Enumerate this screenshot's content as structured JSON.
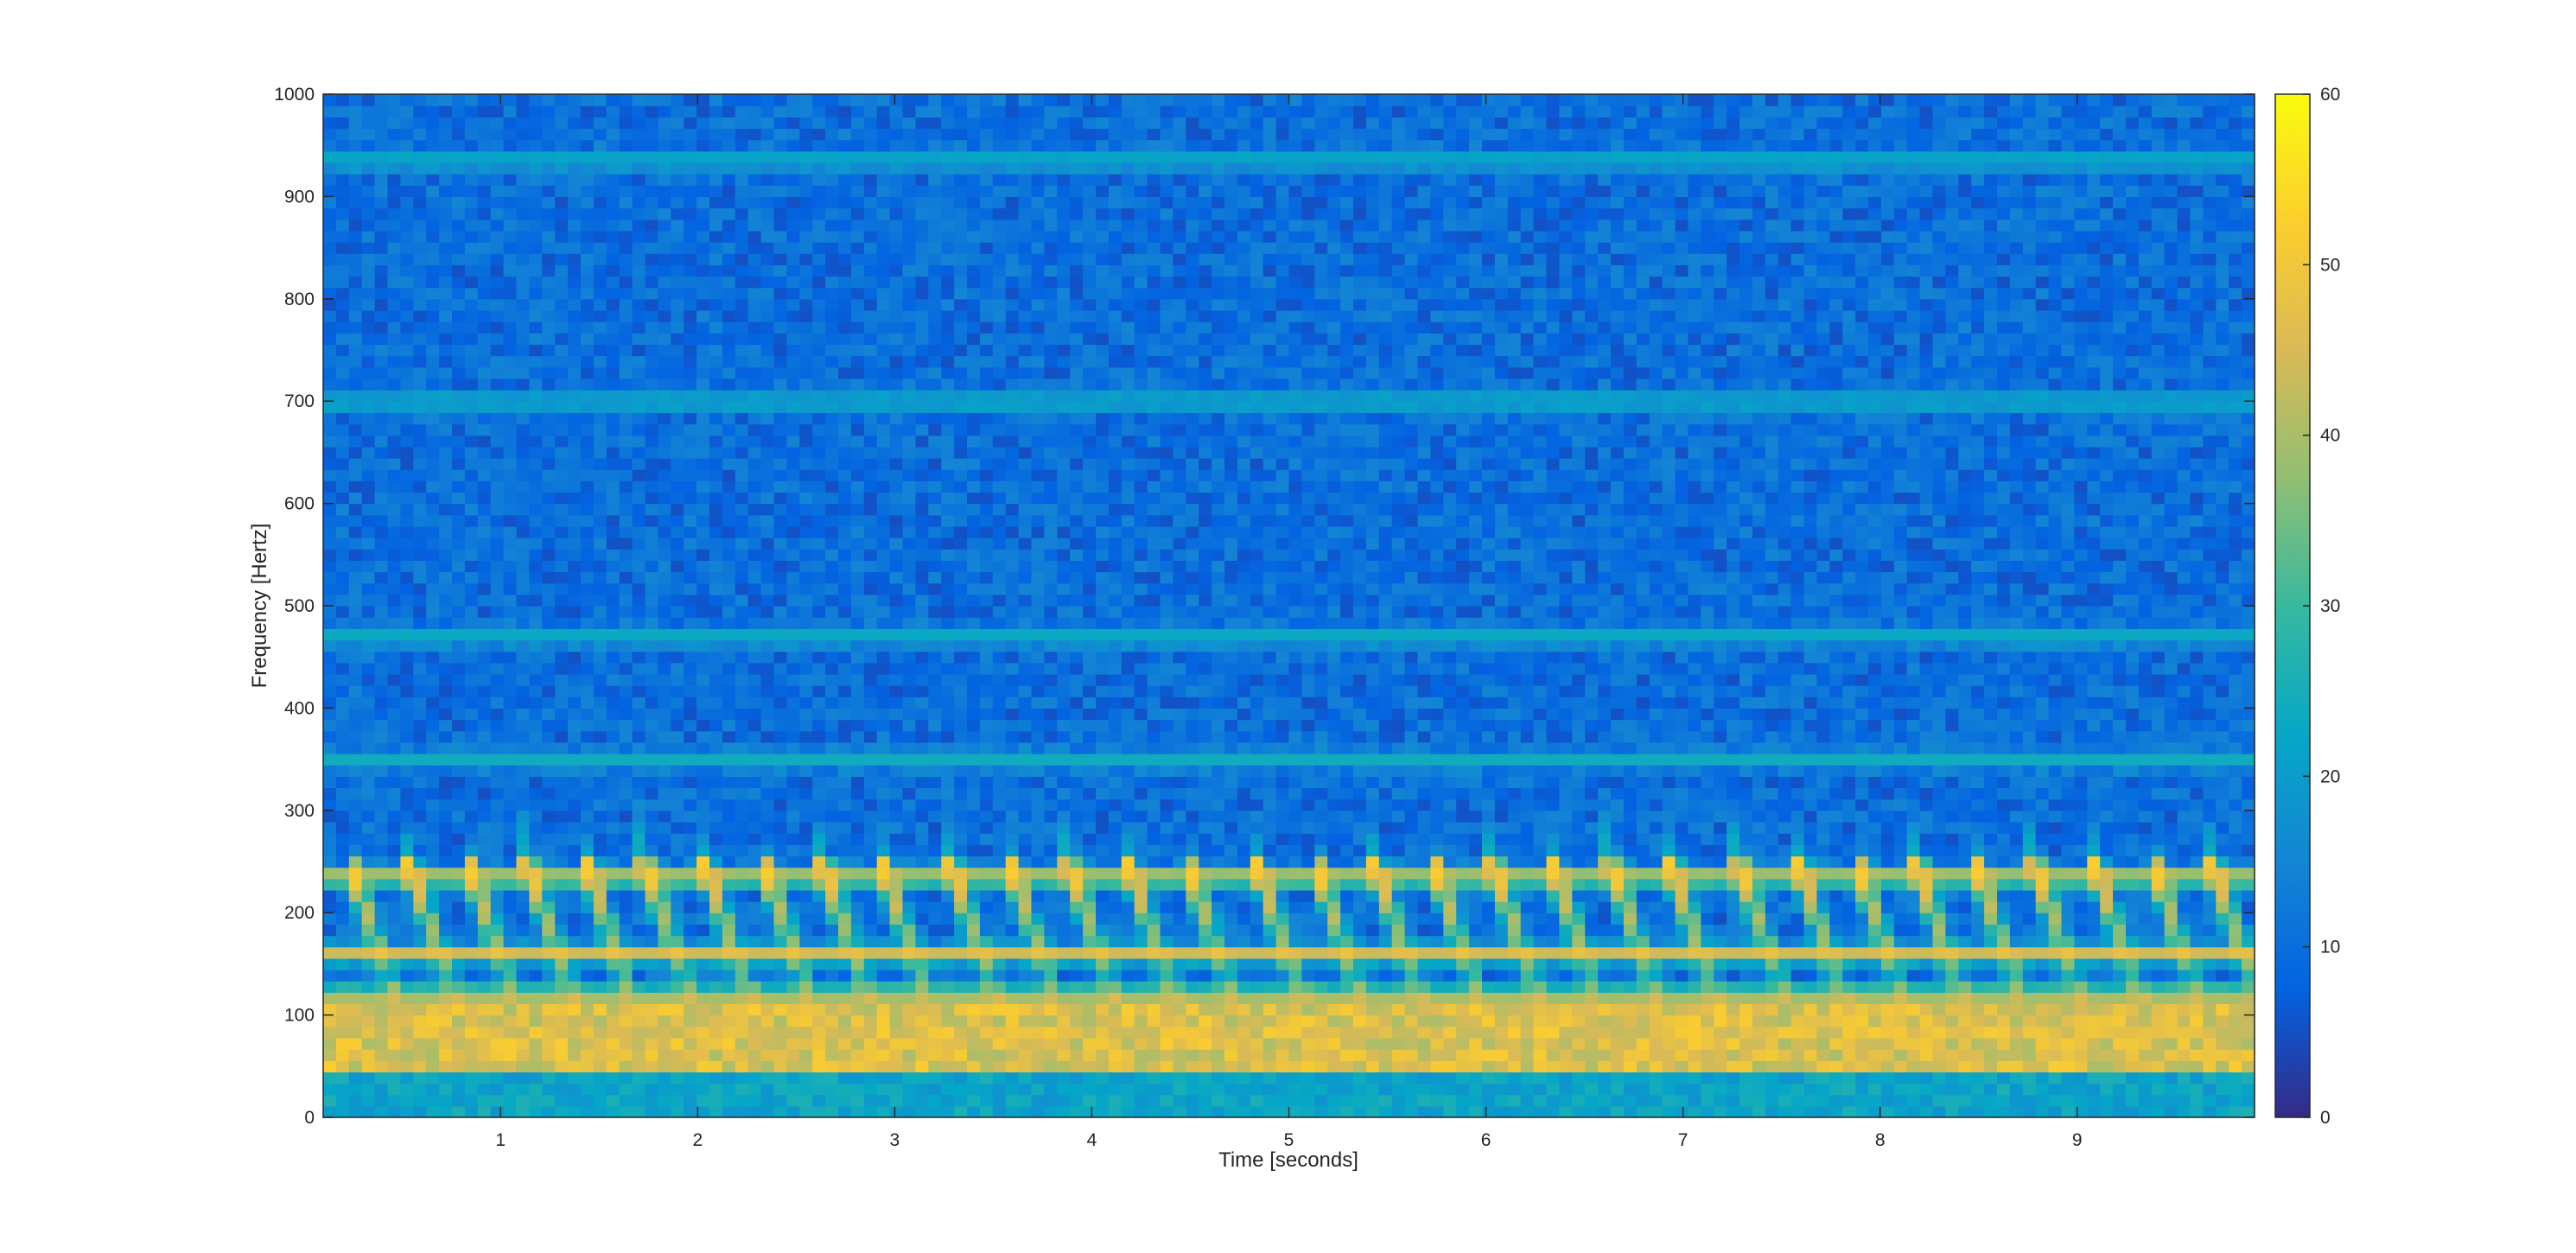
{
  "chart_data": {
    "type": "heatmap",
    "subtype": "spectrogram",
    "title": "",
    "xlabel": "Time [seconds]",
    "ylabel": "Frequency [Hertz]",
    "xlim": [
      0.1,
      9.9
    ],
    "ylim": [
      0,
      1000
    ],
    "xticks": [
      1,
      2,
      3,
      4,
      5,
      6,
      7,
      8,
      9
    ],
    "yticks": [
      0,
      100,
      200,
      300,
      400,
      500,
      600,
      700,
      800,
      900,
      1000
    ],
    "colorbar": {
      "lim": [
        0,
        60
      ],
      "ticks": [
        0,
        10,
        20,
        30,
        40,
        50,
        60
      ],
      "colormap": "parula",
      "colors": [
        "#352A87",
        "#0363E1",
        "#1485D4",
        "#06A7C6",
        "#38B99E",
        "#92BF73",
        "#D9BA56",
        "#FCCE2E",
        "#F9FB0E"
      ]
    },
    "grid": false,
    "legend": "none",
    "features": {
      "fundamental_band_hz": [
        50,
        110
      ],
      "strong_energy_hz": [
        40,
        240
      ],
      "horizontal_partials_hz": [
        65,
        85,
        120,
        160,
        235,
        350,
        470,
        700,
        935
      ],
      "note_onsets_s": [
        0.25,
        0.55,
        0.85,
        1.15,
        1.45,
        1.75,
        2.05,
        2.35,
        2.65,
        2.95,
        3.3,
        3.6,
        3.9,
        4.2,
        4.5,
        4.85,
        5.15,
        5.45,
        5.75,
        6.05,
        6.35,
        6.65,
        6.95,
        7.3,
        7.6,
        7.9,
        8.2,
        8.5,
        8.8,
        9.1,
        9.4,
        9.7
      ],
      "background_level_db": [
        5,
        15
      ]
    }
  }
}
